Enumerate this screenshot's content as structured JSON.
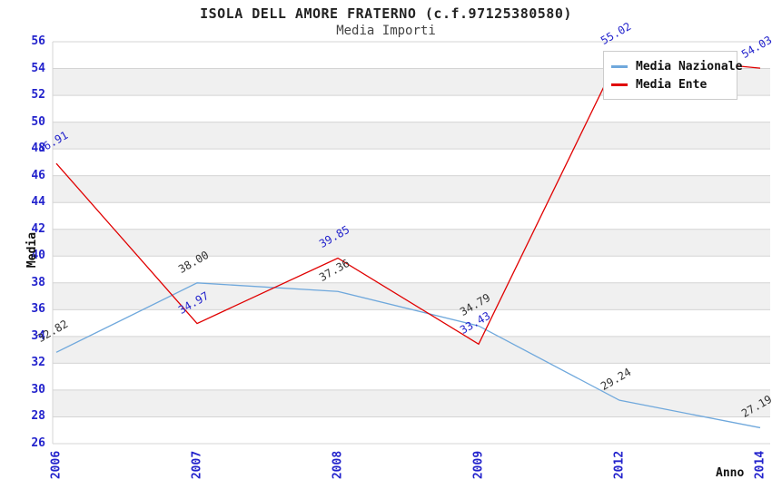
{
  "header": {
    "title": "ISOLA DELL AMORE FRATERNO (c.f.97125380580)",
    "subtitle": "Media Importi"
  },
  "chart_data": {
    "type": "line",
    "title": "ISOLA DELL AMORE FRATERNO (c.f.97125380580)",
    "subtitle": "Media Importi",
    "xlabel": "Anno",
    "ylabel": "Media",
    "categories": [
      "2006",
      "2007",
      "2008",
      "2009",
      "2012",
      "2014"
    ],
    "series": [
      {
        "name": "Media Nazionale",
        "color": "#6fa8dc",
        "label_color": "#333333",
        "values": [
          32.82,
          38.0,
          37.36,
          34.79,
          29.24,
          27.19
        ]
      },
      {
        "name": "Media Ente",
        "color": "#e00000",
        "label_color": "#2323cc",
        "values": [
          46.91,
          34.97,
          39.85,
          33.43,
          55.02,
          54.03
        ]
      }
    ],
    "ylim": [
      26,
      56
    ],
    "ytick_step": 2,
    "grid": true,
    "band_fill": "#f0f0f0",
    "grid_color": "#d4d4d4",
    "tick_color": "#2323cc",
    "legend_position": "top-right"
  }
}
